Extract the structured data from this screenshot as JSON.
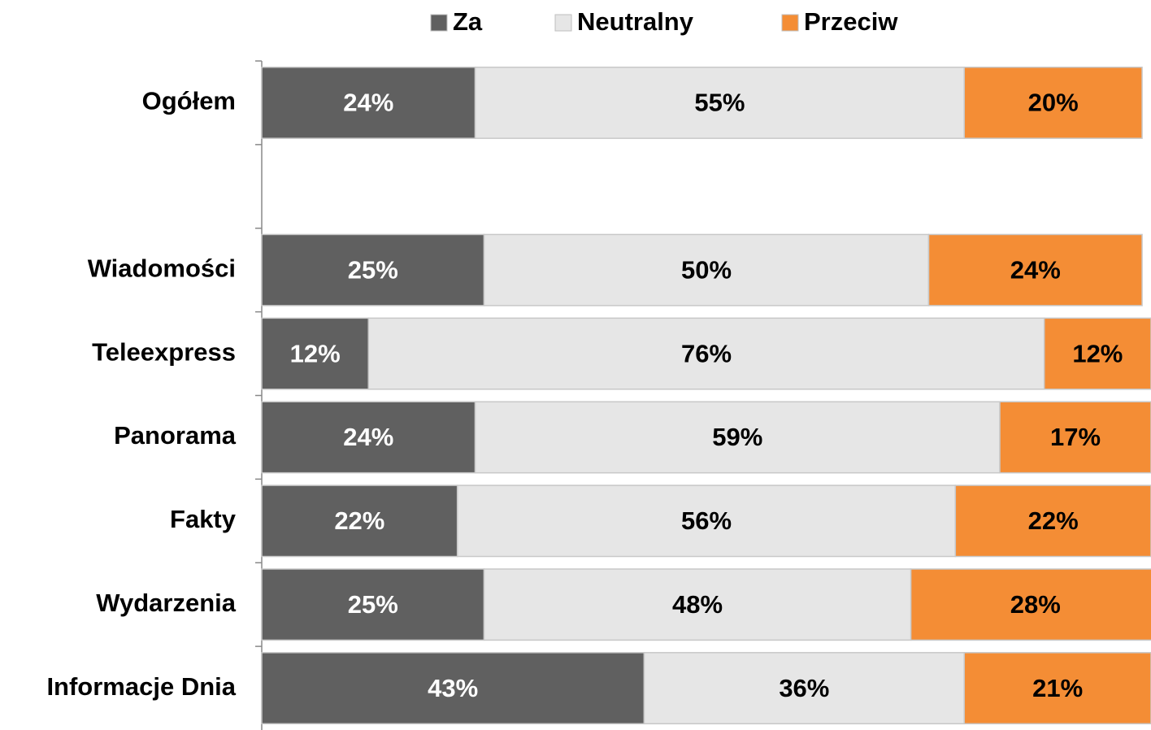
{
  "chart_data": {
    "type": "stacked_barh",
    "categories": [
      "Ogółem",
      null,
      "Wiadomości",
      "Teleexpress",
      "Panorama",
      "Fakty",
      "Wydarzenia",
      "Informacje Dnia"
    ],
    "series": [
      {
        "name": "Za",
        "color": "#606060",
        "label_color": "#ffffff",
        "values": [
          24,
          null,
          25,
          12,
          24,
          22,
          25,
          43
        ],
        "value_labels": [
          "24%",
          null,
          "25%",
          "12%",
          "24%",
          "22%",
          "25%",
          "43%"
        ]
      },
      {
        "name": "Neutralny",
        "color": "#e6e6e6",
        "label_color": "#000000",
        "values": [
          55,
          null,
          50,
          76,
          59,
          56,
          48,
          36
        ],
        "value_labels": [
          "55%",
          null,
          "50%",
          "76%",
          "59%",
          "56%",
          "48%",
          "36%"
        ]
      },
      {
        "name": "Przeciw",
        "color": "#f48d35",
        "label_color": "#000000",
        "values": [
          20,
          null,
          24,
          12,
          17,
          22,
          28,
          21
        ],
        "value_labels": [
          "20%",
          null,
          "24%",
          "12%",
          "17%",
          "22%",
          "28%",
          "21%"
        ]
      }
    ],
    "xlim": [
      0,
      100
    ],
    "legend": "top"
  }
}
